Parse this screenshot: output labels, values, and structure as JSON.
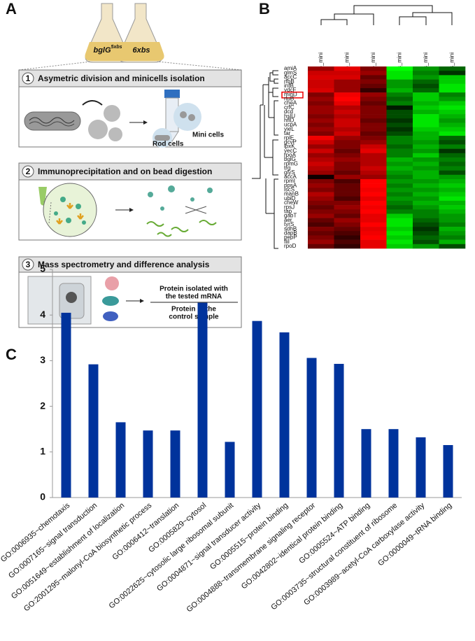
{
  "panel_a": {
    "label": "A",
    "flask_left": {
      "name": "bglG",
      "superscript": "5xbs"
    },
    "flask_right": "6xbs",
    "steps": [
      {
        "number": "1",
        "title": "Asymetric division and minicells isolation"
      },
      {
        "number": "2",
        "title": "Immunoprecipitation and on bead digestion"
      },
      {
        "number": "3",
        "title": "Mass spectrometry and difference analysis"
      }
    ],
    "rod_cells": "Rod cells",
    "mini_cells": "Mini cells",
    "numerator": [
      "Protein isolated with",
      "the tested mRNA"
    ],
    "denominator": [
      "Protein in the",
      "control sample"
    ]
  },
  "heatmap": {
    "label": "B",
    "columns": [
      "bglG_mini",
      "bglG_mini",
      "bglG_mini",
      "6xbs_mini",
      "6xbs_mini",
      "6xbs_mini"
    ],
    "low_color": "#00ff00",
    "mid_color": "#000000",
    "high_color": "#ff0000",
    "highlight": "minD",
    "rows": [
      "amiA",
      "glmS",
      "accC",
      "rfbB",
      "infB",
      "ydcF",
      "minD",
      "rluB",
      "cheA",
      "crfC",
      "dcd",
      "hslU",
      "hflD",
      "ucpA",
      "yieL",
      "tar",
      "rplE",
      "gcvP",
      "lpxK",
      "yecC",
      "rpoA",
      "bglG",
      "rpmG",
      "trg",
      "glyS",
      "accA",
      "rpmI",
      "ppsA",
      "iscS",
      "manB",
      "ubiD",
      "cheW",
      "rpsJ",
      "tap",
      "gabT",
      "aer",
      "tyrS",
      "sdhB",
      "dapB",
      "pepP",
      "fliI",
      "rpoD"
    ],
    "values": [
      [
        0.6,
        0.9,
        0.5,
        -1.0,
        -0.6,
        -0.4
      ],
      [
        0.8,
        0.8,
        0.6,
        -0.9,
        -0.5,
        -0.2
      ],
      [
        0.85,
        0.85,
        0.4,
        -0.9,
        -0.6,
        -0.8
      ],
      [
        0.8,
        0.6,
        0.5,
        -0.6,
        -0.4,
        -0.8
      ],
      [
        0.8,
        0.6,
        0.4,
        -0.6,
        -0.3,
        -0.9
      ],
      [
        0.85,
        0.6,
        0.2,
        -0.7,
        -0.4,
        -0.9
      ],
      [
        0.5,
        0.95,
        0.6,
        -0.5,
        -0.8,
        -0.5
      ],
      [
        0.6,
        1.0,
        0.5,
        -0.4,
        -0.8,
        -0.6
      ],
      [
        0.5,
        0.9,
        0.4,
        -0.5,
        -0.7,
        -0.8
      ],
      [
        0.6,
        0.7,
        0.5,
        -0.1,
        -0.8,
        -0.9
      ],
      [
        0.6,
        0.8,
        0.5,
        -0.3,
        -0.7,
        -0.8
      ],
      [
        0.5,
        0.7,
        0.5,
        -0.3,
        -0.9,
        -0.7
      ],
      [
        0.6,
        0.8,
        0.4,
        -0.2,
        -0.9,
        -0.6
      ],
      [
        0.5,
        0.8,
        0.5,
        -0.3,
        -0.9,
        -0.7
      ],
      [
        0.6,
        0.7,
        0.5,
        -0.2,
        -0.8,
        -0.8
      ],
      [
        0.5,
        0.8,
        0.4,
        -0.3,
        -0.7,
        -0.9
      ],
      [
        0.95,
        0.6,
        0.5,
        -0.5,
        -0.7,
        -0.4
      ],
      [
        0.8,
        0.5,
        0.6,
        -0.5,
        -0.6,
        -0.3
      ],
      [
        0.6,
        0.5,
        0.8,
        -0.4,
        -0.7,
        -0.5
      ],
      [
        0.8,
        0.4,
        0.9,
        -0.5,
        -0.6,
        -0.2
      ],
      [
        0.6,
        0.5,
        0.7,
        -0.5,
        -0.8,
        -0.4
      ],
      [
        0.7,
        0.6,
        0.7,
        -0.7,
        -0.6,
        -0.5
      ],
      [
        0.8,
        0.5,
        0.7,
        -0.6,
        -0.7,
        -0.4
      ],
      [
        0.7,
        0.5,
        0.8,
        -0.7,
        -0.6,
        -0.5
      ],
      [
        0.6,
        0.4,
        0.7,
        -0.6,
        -0.7,
        -0.3
      ],
      [
        0.05,
        0.6,
        0.6,
        -0.5,
        -0.7,
        -0.6
      ],
      [
        0.5,
        0.3,
        1.0,
        -0.6,
        -0.6,
        -0.7
      ],
      [
        0.6,
        0.4,
        1.0,
        -0.5,
        -0.7,
        -0.8
      ],
      [
        0.5,
        0.4,
        0.95,
        -0.6,
        -0.6,
        -0.7
      ],
      [
        0.7,
        0.4,
        1.0,
        -0.5,
        -0.7,
        -0.8
      ],
      [
        0.6,
        0.3,
        0.9,
        -0.6,
        -0.6,
        -0.9
      ],
      [
        0.5,
        0.5,
        1.0,
        -0.5,
        -0.7,
        -0.7
      ],
      [
        0.4,
        0.6,
        0.95,
        -0.4,
        -0.6,
        -0.8
      ],
      [
        0.5,
        0.5,
        1.0,
        -0.5,
        -0.5,
        -0.7
      ],
      [
        0.6,
        0.4,
        0.9,
        -0.8,
        -0.5,
        -0.6
      ],
      [
        0.4,
        0.6,
        0.9,
        -0.9,
        -0.4,
        -0.6
      ],
      [
        0.3,
        0.5,
        1.0,
        -0.9,
        -0.3,
        -0.5
      ],
      [
        0.5,
        0.4,
        0.9,
        -0.8,
        -0.2,
        -0.7
      ],
      [
        0.4,
        0.3,
        0.95,
        -0.9,
        -0.3,
        -0.6
      ],
      [
        0.5,
        0.2,
        1.0,
        -0.8,
        -0.4,
        -0.5
      ],
      [
        0.6,
        0.3,
        0.9,
        -0.9,
        -0.3,
        -0.7
      ],
      [
        0.4,
        0.2,
        0.9,
        -0.8,
        -0.6,
        -0.3
      ]
    ]
  },
  "chart_data": {
    "type": "bar",
    "label": "C",
    "color": "#00339c",
    "categories": [
      "GO:0006935~chemotaxis",
      "GO:0007165~signal transduction",
      "GO:0051649~establishment of localization",
      "GO:2001295~malonyl-CoA biosynthetic process",
      "GO:0006412~translation",
      "GO:0005829~cytosol",
      "GO:0022625~cytosolic large ribosomal subunit",
      "GO:0004871~signal transducer activity",
      "GO:0005515~protein binding",
      "GO:0004888~transmembrane signaling receptor",
      "GO:0042802~identical protein binding",
      "GO:0005524~ATP binding",
      "GO:0003735~structural constituent of ribosome",
      "GO:0003989~acetyl-CoA carboxylase activity",
      "GO:0000049~tRNA binding"
    ],
    "values": [
      4.05,
      2.92,
      1.65,
      1.47,
      1.47,
      4.27,
      1.22,
      3.87,
      3.62,
      3.06,
      2.93,
      1.5,
      1.5,
      1.32,
      1.15
    ],
    "ylim": [
      0,
      5
    ],
    "yticks": [
      0,
      1,
      2,
      3,
      4,
      5
    ],
    "grid": false
  }
}
